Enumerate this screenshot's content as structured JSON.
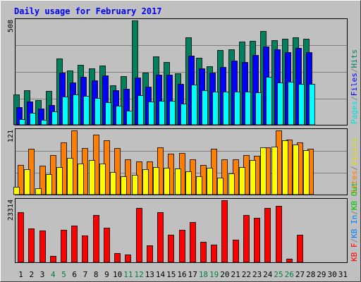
{
  "chart_data": [
    {
      "type": "bar",
      "title": "Daily usage for February 2017",
      "ymax_label": "508",
      "ylim": [
        0,
        508
      ],
      "categories": [
        "1",
        "2",
        "3",
        "4",
        "5",
        "6",
        "7",
        "8",
        "9",
        "10",
        "11",
        "12",
        "13",
        "14",
        "15",
        "16",
        "17",
        "18",
        "19",
        "20",
        "21",
        "22",
        "23",
        "24",
        "25",
        "26",
        "27",
        "28",
        "29",
        "30",
        "31"
      ],
      "weekend_days": [
        "4",
        "5",
        "11",
        "12",
        "18",
        "19",
        "25",
        "26"
      ],
      "series": [
        {
          "name": "Hits",
          "color": "#00805c",
          "values": [
            147,
            167,
            120,
            164,
            323,
            265,
            291,
            276,
            289,
            193,
            238,
            508,
            253,
            333,
            305,
            251,
            424,
            326,
            286,
            363,
            366,
            405,
            410,
            456,
            413,
            418,
            424,
            418,
            null,
            null,
            null
          ]
        },
        {
          "name": "Files",
          "color": "#0000ff",
          "values": [
            87,
            114,
            78,
            95,
            254,
            205,
            233,
            215,
            240,
            168,
            176,
            231,
            185,
            244,
            242,
            200,
            335,
            276,
            255,
            281,
            311,
            306,
            339,
            382,
            367,
            354,
            374,
            352,
            null,
            null,
            null
          ]
        },
        {
          "name": "Pages",
          "color": "#00ffff",
          "values": [
            28,
            57,
            23,
            64,
            139,
            146,
            141,
            130,
            110,
            94,
            68,
            145,
            114,
            115,
            117,
            104,
            195,
            168,
            163,
            161,
            160,
            160,
            159,
            232,
            206,
            209,
            200,
            199,
            null,
            null,
            null
          ]
        }
      ]
    },
    {
      "type": "bar",
      "ymax_label": "121",
      "ylim": [
        0,
        121
      ],
      "categories": [
        "1",
        "2",
        "3",
        "4",
        "5",
        "6",
        "7",
        "8",
        "9",
        "10",
        "11",
        "12",
        "13",
        "14",
        "15",
        "16",
        "17",
        "18",
        "19",
        "20",
        "21",
        "22",
        "23",
        "24",
        "25",
        "26",
        "27",
        "28",
        "29",
        "30",
        "31"
      ],
      "series": [
        {
          "name": "Sites",
          "color": "#ff8000",
          "values": [
            56,
            86,
            55,
            74,
            99,
            121,
            88,
            113,
            103,
            88,
            67,
            62,
            62,
            89,
            77,
            78,
            66,
            56,
            86,
            67,
            66,
            74,
            73,
            89,
            121,
            104,
            99,
            87,
            null,
            null,
            null
          ]
        },
        {
          "name": "Visits",
          "color": "#ffff00",
          "values": [
            14,
            48,
            12,
            38,
            52,
            69,
            58,
            65,
            59,
            43,
            34,
            37,
            48,
            52,
            50,
            49,
            44,
            35,
            50,
            32,
            40,
            52,
            65,
            89,
            90,
            102,
            94,
            84,
            null,
            null,
            null
          ]
        }
      ]
    },
    {
      "type": "bar",
      "ymax_label": "23314",
      "ylim": [
        0,
        23314
      ],
      "categories": [
        "1",
        "2",
        "3",
        "4",
        "5",
        "6",
        "7",
        "8",
        "9",
        "10",
        "11",
        "12",
        "13",
        "14",
        "15",
        "16",
        "17",
        "18",
        "19",
        "20",
        "21",
        "22",
        "23",
        "24",
        "25",
        "26",
        "27",
        "28",
        "29",
        "30",
        "31"
      ],
      "series": [
        {
          "name": "KB F",
          "color": "#ff0000",
          "values": [
            18830,
            12670,
            11900,
            2283,
            12120,
            13900,
            10004,
            17810,
            13030,
            3440,
            2910,
            20420,
            6280,
            18860,
            10324,
            12240,
            15220,
            7640,
            6640,
            23314,
            8580,
            17810,
            16620,
            20330,
            21150,
            1400,
            10330,
            null,
            null,
            null,
            null
          ]
        },
        {
          "name": "KB In",
          "color": "#0080ff",
          "values": [
            0,
            0,
            0,
            0,
            0,
            0,
            0,
            0,
            0,
            0,
            0,
            0,
            0,
            0,
            0,
            0,
            0,
            0,
            0,
            0,
            0,
            0,
            0,
            0,
            0,
            0,
            0,
            0,
            null,
            null,
            null
          ]
        },
        {
          "name": "KB Out",
          "color": "#00c000",
          "values": [
            0,
            0,
            0,
            0,
            0,
            0,
            0,
            0,
            0,
            0,
            0,
            0,
            0,
            0,
            0,
            0,
            0,
            0,
            0,
            0,
            0,
            0,
            0,
            0,
            0,
            0,
            0,
            0,
            null,
            null,
            null
          ]
        }
      ]
    }
  ],
  "legend_right": {
    "top": [
      {
        "text": "Pages",
        "color": "#00e0e0"
      },
      {
        "text": "/",
        "color": "#808080"
      },
      {
        "text": "Files",
        "color": "#0000ff"
      },
      {
        "text": "/",
        "color": "#808080"
      },
      {
        "text": "Hits",
        "color": "#00805c"
      }
    ],
    "middle": [
      {
        "text": "Sites",
        "color": "#ff8000"
      },
      {
        "text": "/",
        "color": "#808080"
      },
      {
        "text": "Visits",
        "color": "#e0e000"
      }
    ],
    "bottom": [
      {
        "text": "KB F",
        "color": "#ff0000"
      },
      {
        "text": "/",
        "color": "#808080"
      },
      {
        "text": "KB In",
        "color": "#0080ff"
      },
      {
        "text": "/",
        "color": "#808080"
      },
      {
        "text": "KB Out",
        "color": "#00c000"
      }
    ]
  },
  "colors": {
    "background": "#c0c0c0",
    "title": "#0000ff",
    "weekday_label": "#000000",
    "weekend_label": "#008040"
  }
}
